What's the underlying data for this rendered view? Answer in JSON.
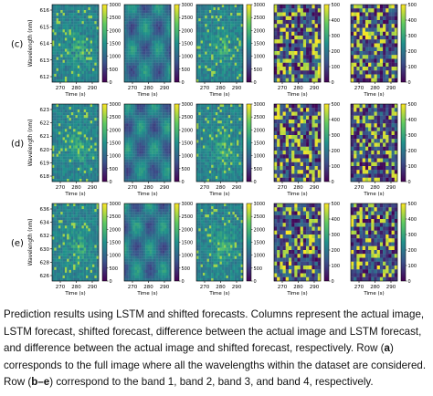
{
  "figure": {
    "rows": [
      {
        "label": "(c)",
        "y_ticks": [
          "616",
          "615",
          "614",
          "613",
          "612"
        ],
        "ylabel": "Wavelength (nm)",
        "x_ticks": [
          "270",
          "280",
          "290"
        ],
        "xlabel": "Time (s)",
        "colorbars": [
          [
            "3000",
            "2500",
            "2000",
            "1500",
            "1000",
            "500",
            "0"
          ],
          [
            "3000",
            "2500",
            "2000",
            "1500",
            "1000",
            "500",
            "0"
          ],
          [
            "3000",
            "2500",
            "2000",
            "1500",
            "1000",
            "500",
            "0"
          ],
          [
            "500",
            "400",
            "300",
            "200",
            "100",
            "0"
          ],
          [
            "500",
            "400",
            "300",
            "200",
            "100",
            "0"
          ]
        ]
      },
      {
        "label": "(d)",
        "y_ticks": [
          "623",
          "622",
          "621",
          "620",
          "619",
          "618"
        ],
        "ylabel": "Wavelength (nm)",
        "x_ticks": [
          "270",
          "280",
          "290"
        ],
        "xlabel": "Time (s)",
        "colorbars": [
          [
            "3000",
            "2500",
            "2000",
            "1500",
            "1000",
            "500",
            "0"
          ],
          [
            "3000",
            "2500",
            "2000",
            "1500",
            "1000",
            "500",
            "0"
          ],
          [
            "3000",
            "2500",
            "2000",
            "1500",
            "1000",
            "500",
            "0"
          ],
          [
            "500",
            "400",
            "300",
            "200",
            "100",
            "0"
          ],
          [
            "500",
            "400",
            "300",
            "200",
            "100",
            "0"
          ]
        ]
      },
      {
        "label": "(e)",
        "y_ticks": [
          "636",
          "634",
          "632",
          "630",
          "628",
          "626"
        ],
        "ylabel": "Wavelength (nm)",
        "x_ticks": [
          "270",
          "280",
          "290"
        ],
        "xlabel": "Time (s)",
        "colorbars": [
          [
            "3000",
            "2500",
            "2000",
            "1500",
            "1000",
            "500",
            "0"
          ],
          [
            "3000",
            "2500",
            "2000",
            "1500",
            "1000",
            "500",
            "0"
          ],
          [
            "3000",
            "2500",
            "2000",
            "1500",
            "1000",
            "500",
            "0"
          ],
          [
            "500",
            "400",
            "300",
            "200",
            "100",
            "0"
          ],
          [
            "500",
            "400",
            "300",
            "200",
            "100",
            "0"
          ]
        ]
      }
    ],
    "colormap": [
      "#440154",
      "#3b528b",
      "#21918c",
      "#5ec962",
      "#fde725"
    ]
  },
  "caption": {
    "p1": "Prediction results using LSTM and shifted forecasts. Columns represent the actual image, LSTM forecast, shifted forecast, difference between the actual image and LSTM forecast, and difference between the actual image and shifted forecast, respectively. Row (",
    "b1": "a",
    "p2": ") corresponds to the full image where all the wavelengths within the dataset are considered. Row (",
    "b2": "b–e",
    "p3": ") correspond to the band 1, band 2, band 3, and band 4, respectively."
  }
}
